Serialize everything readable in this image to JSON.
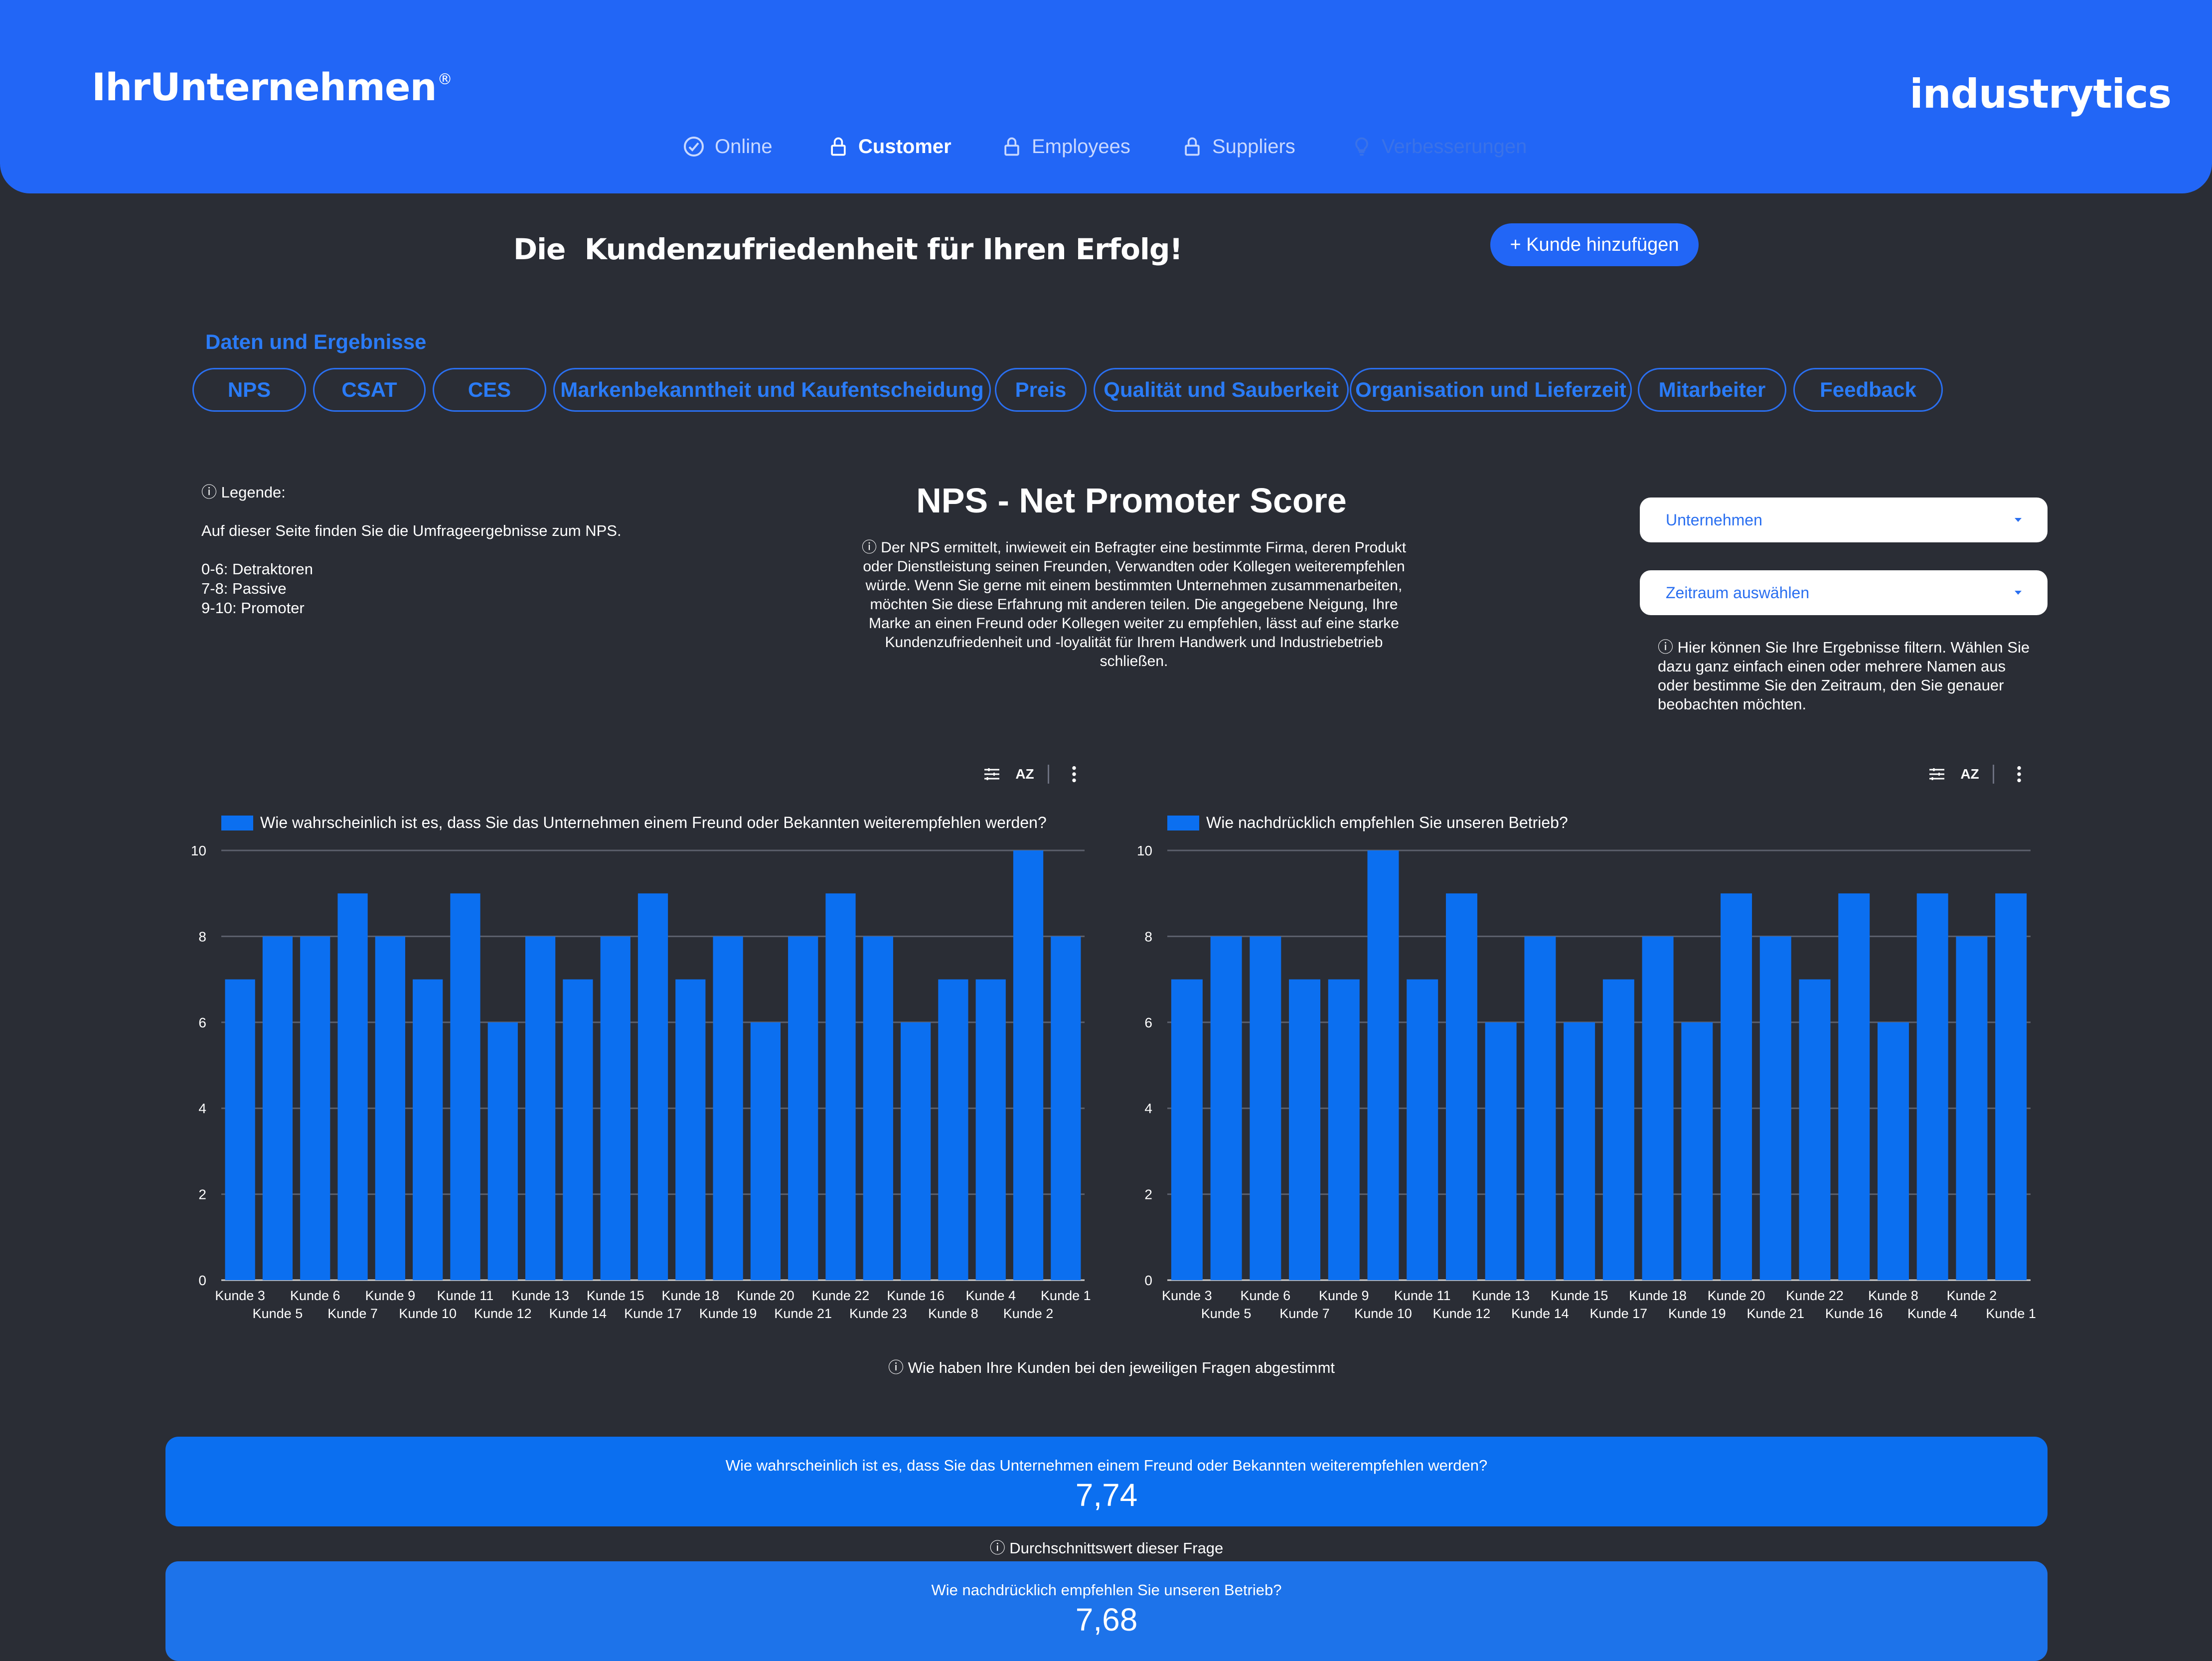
{
  "header": {
    "brand": "IhrUnternehmen",
    "brand_mark": "®",
    "logo": "industrytics",
    "nav": [
      {
        "label": "Online",
        "icon": "check-circle-icon"
      },
      {
        "label": "Customer",
        "icon": "lock-icon"
      },
      {
        "label": "Employees",
        "icon": "lock-icon"
      },
      {
        "label": "Suppliers",
        "icon": "lock-icon"
      },
      {
        "label": "Verbesserungen",
        "icon": "bulb-icon"
      }
    ]
  },
  "hero": {
    "title": "Die  Kundenzufriedenheit für Ihren Erfolg!",
    "add_button": "+ Kunde hinzufügen"
  },
  "section": {
    "title": "Daten und Ergebnisse",
    "tabs": [
      "NPS",
      "CSAT",
      "CES",
      "Markenbekanntheit und Kaufentscheidung",
      "Preis",
      "Qualität und Sauberkeit",
      "Organisation und Lieferzeit",
      "Mitarbeiter",
      "Feedback"
    ]
  },
  "legend": {
    "heading": "ⓘ Legende:",
    "intro": "Auf dieser Seite finden Sie die Umfrageergebnisse zum NPS.",
    "lines": [
      "0-6: Detraktoren",
      "7-8: Passive",
      "9-10: Promoter"
    ]
  },
  "nps": {
    "title": "NPS - Net Promoter Score",
    "description": "ⓘ Der NPS ermittelt, inwieweit ein Befragter eine bestimmte Firma, deren Produkt oder Dienstleistung seinen Freunden, Verwandten oder Kollegen weiterempfehlen würde. Wenn Sie gerne mit einem bestimmten Unternehmen zusammenarbeiten, möchten Sie diese Erfahrung mit anderen teilen. Die angegebene Neigung, Ihre Marke an einen Freund oder Kollegen weiter zu empfehlen, lässt auf eine starke Kundenzufriedenheit und -loyalität für Ihrem Handwerk und Industriebetrieb schließen."
  },
  "filters": {
    "company_label": "Unternehmen",
    "period_label": "Zeitraum auswählen",
    "note": "ⓘ Hier können Sie Ihre Ergebnisse filtern. Wählen Sie dazu ganz einfach einen oder mehrere Namen aus oder  bestimme Sie den Zeitraum, den Sie genauer beobachten möchten."
  },
  "toolbar": {
    "sort_label": "AZ"
  },
  "chart_data": [
    {
      "type": "bar",
      "series_name": "Wie wahrscheinlich ist es, dass Sie das Unternehmen einem Freund oder Bekannten weiterempfehlen werden?",
      "categories": [
        "Kunde 3",
        "Kunde 5",
        "Kunde 6",
        "Kunde 7",
        "Kunde 9",
        "Kunde 10",
        "Kunde 11",
        "Kunde 12",
        "Kunde 13",
        "Kunde 14",
        "Kunde 15",
        "Kunde 17",
        "Kunde 18",
        "Kunde 19",
        "Kunde 20",
        "Kunde 21",
        "Kunde 22",
        "Kunde 23",
        "Kunde 16",
        "Kunde 8",
        "Kunde 4",
        "Kunde 2",
        "Kunde 1"
      ],
      "values": [
        7,
        8,
        8,
        9,
        8,
        7,
        9,
        6,
        8,
        7,
        8,
        9,
        7,
        8,
        6,
        8,
        9,
        8,
        6,
        7,
        7,
        10,
        8
      ],
      "y_ticks": [
        "0",
        "2",
        "4",
        "6",
        "8",
        "10"
      ],
      "ylim": [
        0,
        10
      ],
      "color": "#0b6ff0"
    },
    {
      "type": "bar",
      "series_name": "Wie nachdrücklich empfehlen Sie unseren Betrieb?",
      "categories": [
        "Kunde 3",
        "Kunde 5",
        "Kunde 6",
        "Kunde 7",
        "Kunde 9",
        "Kunde 10",
        "Kunde 11",
        "Kunde 12",
        "Kunde 13",
        "Kunde 14",
        "Kunde 15",
        "Kunde 17",
        "Kunde 18",
        "Kunde 19",
        "Kunde 20",
        "Kunde 21",
        "Kunde 22",
        "Kunde 16",
        "Kunde 8",
        "Kunde 4",
        "Kunde 2",
        "Kunde 1"
      ],
      "values": [
        7,
        8,
        8,
        7,
        7,
        10,
        7,
        9,
        6,
        8,
        6,
        7,
        8,
        6,
        9,
        8,
        7,
        9,
        6,
        9,
        8,
        9
      ],
      "y_ticks": [
        "0",
        "2",
        "4",
        "6",
        "8",
        "10"
      ],
      "ylim": [
        0,
        10
      ],
      "color": "#0b6ff0"
    }
  ],
  "vote_note": "ⓘ Wie haben Ihre Kunden bei den jeweiligen Fragen abgestimmt",
  "averages": [
    {
      "question": "Wie wahrscheinlich ist es, dass Sie das Unternehmen einem Freund oder Bekannten weiterempfehlen werden?",
      "value": "7,74"
    },
    {
      "question": "Wie nachdrücklich empfehlen Sie unseren Betrieb?",
      "value": "7,68"
    }
  ],
  "avg_note": "ⓘ Durchschnittswert dieser Frage"
}
